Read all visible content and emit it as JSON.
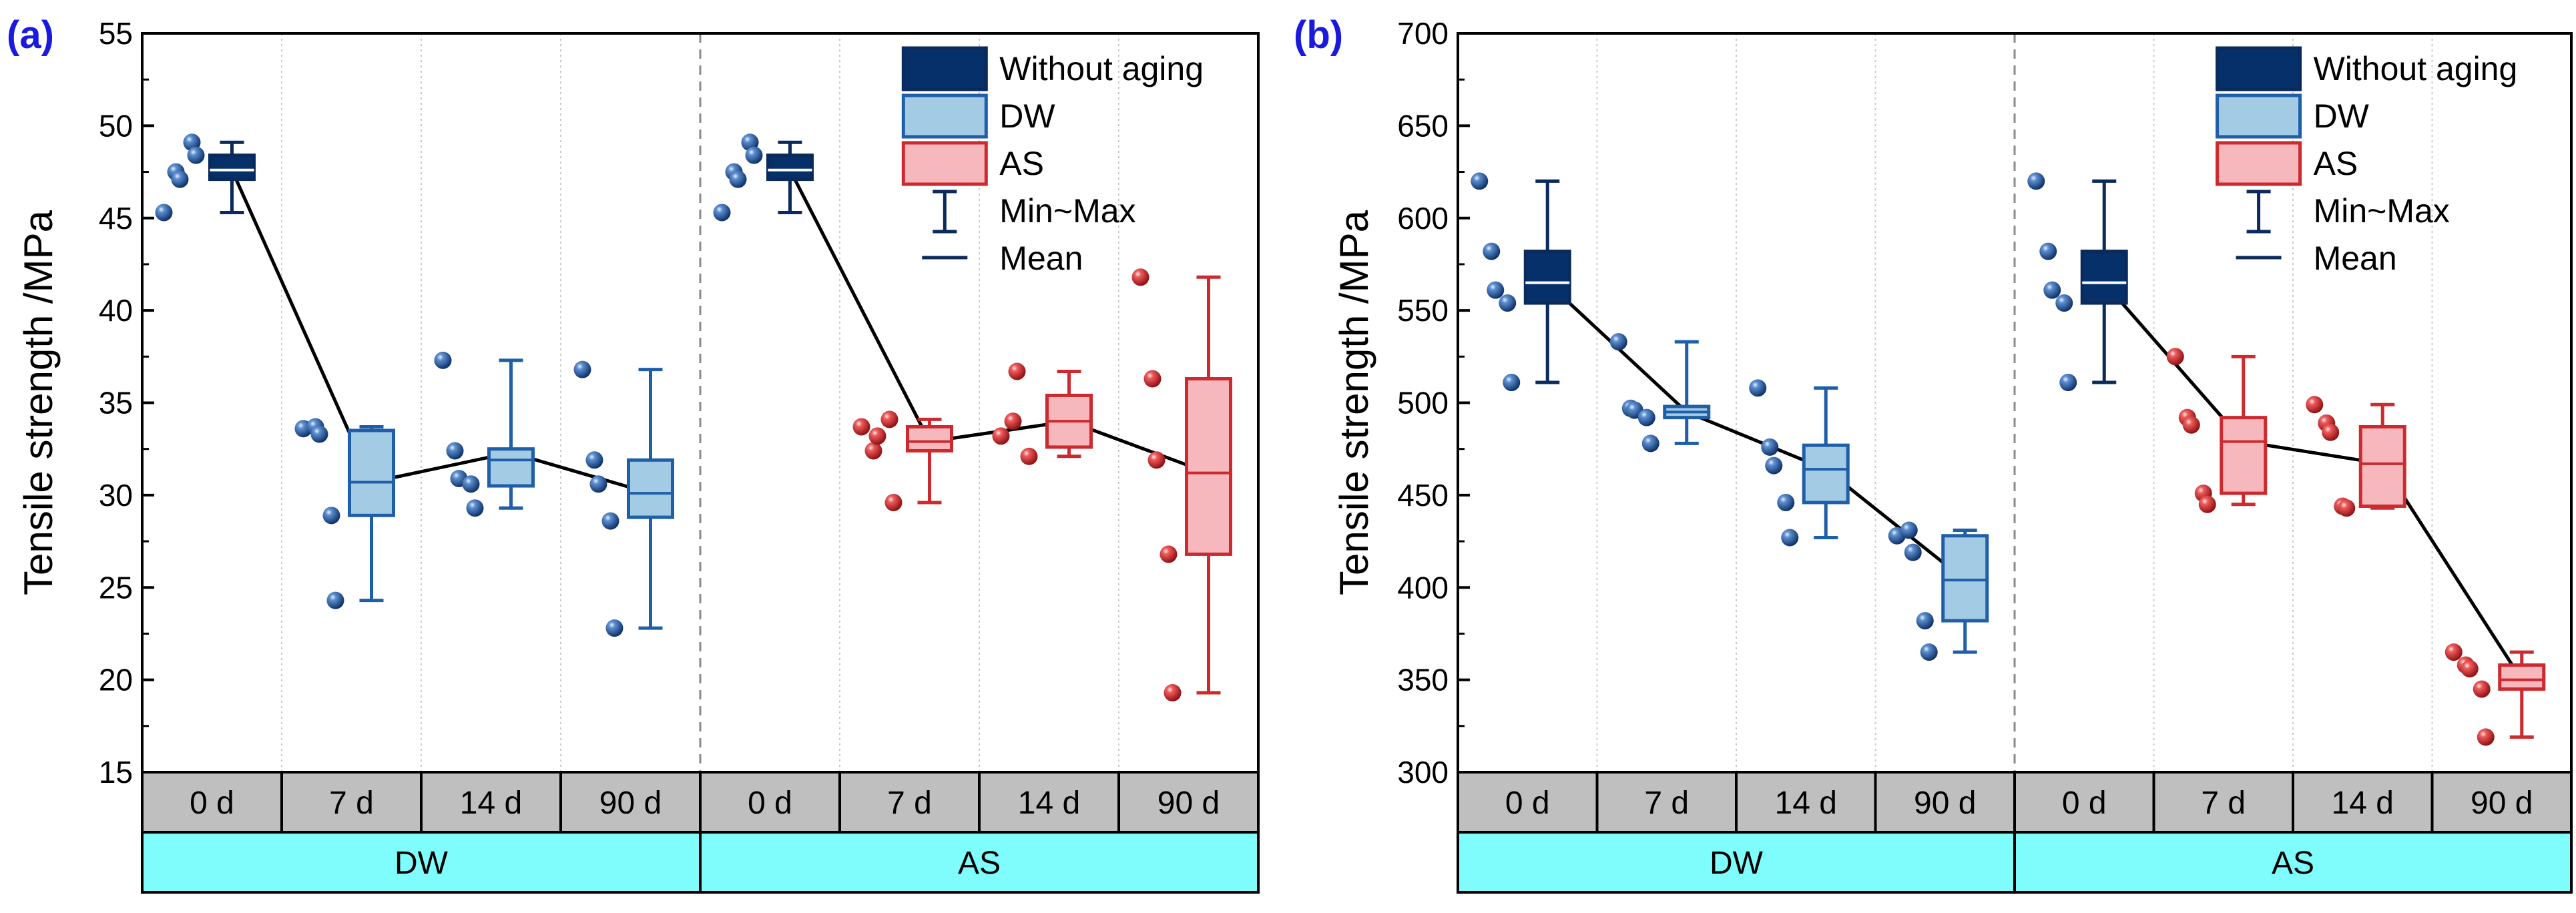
{
  "colors": {
    "dark_fill": "#06306a",
    "dark_stroke": "#0a2a5c",
    "dw_fill": "#a3cbe4",
    "dw_stroke": "#1f5ea8",
    "as_fill": "#f7b8bd",
    "as_stroke": "#cc2a2f",
    "dw_point": "#1a4e93",
    "as_point": "#d42a2e",
    "cat_bg": "#bfbfbf",
    "group_bg": "#7ffcfc",
    "panel_label": "#1a1adf",
    "grid": "#c8c8c8",
    "divider": "#8a8a8a"
  },
  "legend": {
    "items": [
      {
        "kind": "box",
        "fill": "dark",
        "label": "Without aging"
      },
      {
        "kind": "box",
        "fill": "dw",
        "label": "DW"
      },
      {
        "kind": "box",
        "fill": "as",
        "label": "AS"
      },
      {
        "kind": "whisker",
        "label": "Min~Max"
      },
      {
        "kind": "mean",
        "label": "Mean"
      }
    ]
  },
  "chart_data": [
    {
      "type": "box",
      "panel_label": "(a)",
      "ylabel": "Tensile strength /MPa",
      "ylim": [
        15,
        55
      ],
      "yticks": [
        15,
        20,
        25,
        30,
        35,
        40,
        45,
        50,
        55
      ],
      "categories": [
        "0 d",
        "7 d",
        "14 d",
        "90 d",
        "0 d",
        "7 d",
        "14 d",
        "90 d"
      ],
      "groups": [
        {
          "name": "DW",
          "span": 4
        },
        {
          "name": "AS",
          "span": 4
        }
      ],
      "boxes": [
        {
          "style": "dark",
          "min": 45.3,
          "q1": 47.1,
          "median": 47.6,
          "q3": 48.4,
          "max": 49.1,
          "mean": 47.6,
          "points": [
            45.3,
            47.5,
            47.1,
            49.1,
            48.4
          ]
        },
        {
          "style": "dw",
          "min": 24.3,
          "q1": 28.9,
          "median": 30.7,
          "q3": 33.5,
          "max": 33.7,
          "mean": 30.7,
          "points": [
            33.6,
            33.7,
            33.3,
            28.9,
            24.3
          ]
        },
        {
          "style": "dw",
          "min": 29.3,
          "q1": 30.5,
          "median": 31.9,
          "q3": 32.5,
          "max": 37.3,
          "mean": 32.3,
          "points": [
            37.3,
            32.4,
            30.9,
            30.6,
            29.3
          ]
        },
        {
          "style": "dw",
          "min": 22.8,
          "q1": 28.8,
          "median": 30.1,
          "q3": 31.9,
          "max": 36.8,
          "mean": 30.1,
          "points": [
            36.8,
            31.9,
            30.6,
            28.6,
            22.8
          ]
        },
        {
          "style": "dark",
          "min": 45.3,
          "q1": 47.1,
          "median": 47.6,
          "q3": 48.4,
          "max": 49.1,
          "mean": 47.6,
          "points": [
            45.3,
            47.5,
            47.1,
            49.1,
            48.4
          ]
        },
        {
          "style": "as",
          "min": 29.6,
          "q1": 32.4,
          "median": 32.9,
          "q3": 33.7,
          "max": 34.1,
          "mean": 32.9,
          "points": [
            33.7,
            32.4,
            33.2,
            34.1,
            29.6
          ]
        },
        {
          "style": "as",
          "min": 32.1,
          "q1": 32.6,
          "median": 34.0,
          "q3": 35.4,
          "max": 36.7,
          "mean": 34.0,
          "points": [
            33.2,
            34.0,
            36.7,
            32.1
          ]
        },
        {
          "style": "as",
          "min": 19.3,
          "q1": 26.8,
          "median": 31.2,
          "q3": 36.3,
          "max": 41.8,
          "mean": 31.2,
          "points": [
            41.8,
            36.3,
            31.9,
            26.8,
            19.3
          ]
        }
      ],
      "mean_line_segments": [
        [
          0,
          1
        ],
        [
          1,
          2
        ],
        [
          2,
          3
        ],
        [
          4,
          5
        ],
        [
          5,
          6
        ],
        [
          6,
          7
        ]
      ]
    },
    {
      "type": "box",
      "panel_label": "(b)",
      "ylabel": "Tensile strength /MPa",
      "ylim": [
        300,
        700
      ],
      "yticks": [
        300,
        350,
        400,
        450,
        500,
        550,
        600,
        650,
        700
      ],
      "categories": [
        "0 d",
        "7 d",
        "14 d",
        "90 d",
        "0 d",
        "7 d",
        "14 d",
        "90 d"
      ],
      "groups": [
        {
          "name": "DW",
          "span": 4
        },
        {
          "name": "AS",
          "span": 4
        }
      ],
      "boxes": [
        {
          "style": "dark",
          "min": 511,
          "q1": 554,
          "median": 565,
          "q3": 582,
          "max": 620,
          "mean": 565,
          "points": [
            620,
            582,
            561,
            554,
            511
          ]
        },
        {
          "style": "dw",
          "min": 478,
          "q1": 492,
          "median": 495,
          "q3": 498,
          "max": 533,
          "mean": 495,
          "points": [
            533,
            497,
            496,
            492,
            478
          ]
        },
        {
          "style": "dw",
          "min": 427,
          "q1": 446,
          "median": 464,
          "q3": 477,
          "max": 508,
          "mean": 464,
          "points": [
            508,
            476,
            466,
            446,
            427
          ]
        },
        {
          "style": "dw",
          "min": 365,
          "q1": 382,
          "median": 404,
          "q3": 428,
          "max": 431,
          "mean": 404,
          "points": [
            428,
            431,
            419,
            382,
            365
          ]
        },
        {
          "style": "dark",
          "min": 511,
          "q1": 554,
          "median": 565,
          "q3": 582,
          "max": 620,
          "mean": 565,
          "points": [
            620,
            582,
            561,
            554,
            511
          ]
        },
        {
          "style": "as",
          "min": 445,
          "q1": 451,
          "median": 479,
          "q3": 492,
          "max": 525,
          "mean": 479,
          "points": [
            525,
            492,
            488,
            451,
            445
          ]
        },
        {
          "style": "as",
          "min": 443,
          "q1": 444,
          "median": 467,
          "q3": 487,
          "max": 499,
          "mean": 467,
          "points": [
            499,
            489,
            484,
            444,
            443
          ]
        },
        {
          "style": "as",
          "min": 319,
          "q1": 345,
          "median": 350,
          "q3": 358,
          "max": 365,
          "mean": 350,
          "points": [
            365,
            358,
            356,
            345,
            319
          ]
        }
      ],
      "mean_line_segments": [
        [
          0,
          1
        ],
        [
          1,
          2
        ],
        [
          2,
          3
        ],
        [
          4,
          5
        ],
        [
          5,
          6
        ],
        [
          6,
          7
        ]
      ]
    }
  ]
}
